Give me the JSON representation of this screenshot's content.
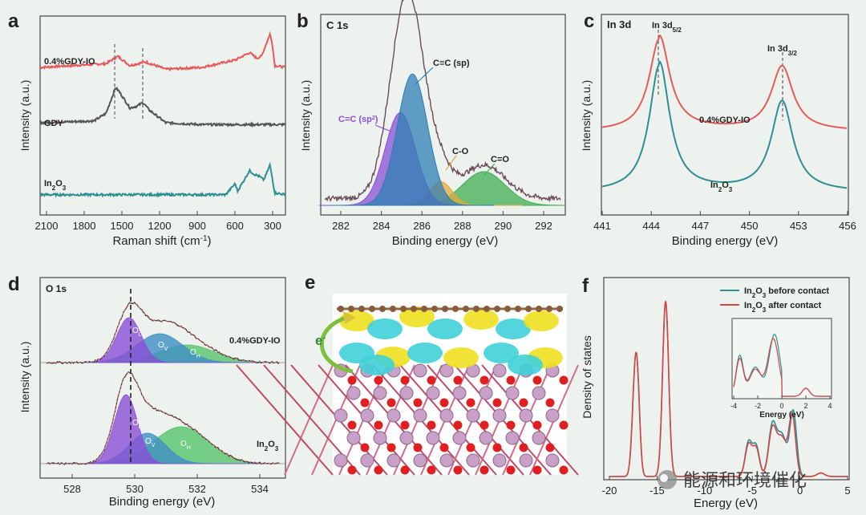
{
  "panels": {
    "a": {
      "letter": "a",
      "xlabel_main": "Raman shift (cm",
      "xlabel_sup": "-1",
      "xlabel_end": ")",
      "ylabel": "Intensity (a.u.)",
      "xticks": [
        "2100",
        "1800",
        "1500",
        "1200",
        "900",
        "600",
        "300"
      ],
      "series": [
        "0.4%GDY-IO",
        "GDY",
        "In2O3"
      ],
      "colors": {
        "gdyio": "#e55a5a",
        "gdy": "#555555",
        "in2o3": "#2b8f94"
      }
    },
    "b": {
      "letter": "b",
      "title": "C 1s",
      "xlabel": "Binding energy (eV)",
      "ylabel": "Intensity (a.u.)",
      "xticks": [
        "282",
        "284",
        "286",
        "288",
        "290",
        "292"
      ],
      "peaks": {
        "sp2": "C=C (sp",
        "sp2_sup": "2",
        "sp2_end": ")",
        "sp": "C≡C (sp)",
        "co": "C-O",
        "c_o": "C=O"
      },
      "colors": {
        "sp2": "#8a4fd6",
        "sp": "#2f7fb5",
        "co": "#e3a93a",
        "c_o": "#3fae50"
      }
    },
    "c": {
      "letter": "c",
      "title": "In 3d",
      "xlabel": "Binding energy (eV)",
      "ylabel": "Intensity (a.u.)",
      "xticks": [
        "441",
        "444",
        "447",
        "450",
        "453",
        "456"
      ],
      "peak1": "In 3d",
      "peak1_sub": "5/2",
      "peak2": "In 3d",
      "peak2_sub": "3/2",
      "label_top": "0.4%GDY-IO",
      "label_bot": "In2O3"
    },
    "d": {
      "letter": "d",
      "title": "O 1s",
      "xlabel": "Binding energy (eV)",
      "ylabel": "Intensity (a.u.)",
      "xticks": [
        "528",
        "530",
        "532",
        "534"
      ],
      "label_top": "0.4%GDY-IO",
      "label_bot": "In2O3",
      "ol": "O",
      "ol_sub": "L",
      "ov": "O",
      "ov_sub": "V",
      "oh": "O",
      "oh_sub": "H"
    },
    "e": {
      "letter": "e",
      "arrow_label": "e",
      "arrow_sup": "-"
    },
    "f": {
      "letter": "f",
      "xlabel": "Energy (eV)",
      "ylabel": "Density of states",
      "xticks": [
        "-20",
        "-15",
        "-10",
        "-5",
        "0",
        "5"
      ],
      "legend": [
        "In2O3 before contact",
        "In2O3 after contact"
      ],
      "inset_xlabel": "Energy (eV)",
      "inset_xticks": [
        "-4",
        "-2",
        "0",
        "2",
        "4"
      ],
      "colors": {
        "before": "#2b8f94",
        "after": "#d64545"
      }
    }
  },
  "watermark": "能源和环境催化",
  "chart_data": [
    {
      "type": "line",
      "panel": "a",
      "title": "",
      "xlabel": "Raman shift (cm-1)",
      "ylabel": "Intensity (a.u.)",
      "xlim": [
        2250,
        200
      ],
      "series": [
        {
          "name": "0.4%GDY-IO",
          "x": [
            2250,
            1700,
            1600,
            1500,
            1370,
            1200,
            900,
            620,
            500,
            440,
            400,
            330,
            310,
            290,
            200
          ],
          "y": [
            0.8,
            0.82,
            0.86,
            0.81,
            0.83,
            0.79,
            0.8,
            0.84,
            0.88,
            0.85,
            0.86,
            0.98,
            0.93,
            0.81,
            0.8
          ]
        },
        {
          "name": "GDY",
          "x": [
            2250,
            1800,
            1700,
            1620,
            1590,
            1500,
            1440,
            1390,
            1340,
            1200,
            900,
            600,
            300,
            200
          ],
          "y": [
            0.5,
            0.51,
            0.55,
            0.69,
            0.67,
            0.58,
            0.59,
            0.61,
            0.57,
            0.5,
            0.49,
            0.49,
            0.49,
            0.49
          ]
        },
        {
          "name": "In2O3",
          "x": [
            2250,
            1200,
            700,
            620,
            600,
            500,
            460,
            420,
            380,
            330,
            310,
            290,
            200
          ],
          "y": [
            0.11,
            0.11,
            0.11,
            0.17,
            0.13,
            0.24,
            0.22,
            0.21,
            0.19,
            0.27,
            0.2,
            0.12,
            0.11
          ]
        }
      ]
    },
    {
      "type": "area",
      "panel": "b",
      "title": "C 1s",
      "xlabel": "Binding energy (eV)",
      "ylabel": "Intensity (a.u.)",
      "xlim": [
        281,
        293
      ],
      "series": [
        {
          "name": "C=C (sp2)",
          "center": 284.9,
          "height": 0.55
        },
        {
          "name": "C≡C (sp)",
          "center": 285.5,
          "height": 0.78
        },
        {
          "name": "C-O",
          "center": 286.9,
          "height": 0.14
        },
        {
          "name": "C=O",
          "center": 289.0,
          "height": 0.2
        }
      ]
    },
    {
      "type": "line",
      "panel": "c",
      "title": "In 3d",
      "xlabel": "Binding energy (eV)",
      "ylabel": "Intensity (a.u.)",
      "xlim": [
        441,
        456
      ],
      "series": [
        {
          "name": "0.4%GDY-IO",
          "peaks": [
            444.5,
            452.0
          ]
        },
        {
          "name": "In2O3",
          "peaks": [
            444.5,
            452.0
          ]
        }
      ]
    },
    {
      "type": "area",
      "panel": "d",
      "title": "O 1s",
      "xlabel": "Binding energy (eV)",
      "ylabel": "Intensity (a.u.)",
      "xlim": [
        527,
        535
      ],
      "series": [
        {
          "name": "0.4%GDY-IO OL",
          "center": 529.9
        },
        {
          "name": "0.4%GDY-IO OV",
          "center": 530.9
        },
        {
          "name": "0.4%GDY-IO OH",
          "center": 531.8
        },
        {
          "name": "In2O3 OL",
          "center": 529.8
        },
        {
          "name": "In2O3 OV",
          "center": 530.5
        },
        {
          "name": "In2O3 OH",
          "center": 531.6
        }
      ]
    },
    {
      "type": "line",
      "panel": "f",
      "title": "",
      "xlabel": "Energy (eV)",
      "ylabel": "Density of states",
      "xlim": [
        -20,
        5
      ],
      "series": [
        {
          "name": "In2O3 before contact",
          "peaks": [
            -17.3,
            -14.1,
            -5.2,
            -2.8,
            -0.5
          ]
        },
        {
          "name": "In2O3 after contact",
          "peaks": [
            -17.3,
            -14.1,
            -5.2,
            -2.8,
            -0.6
          ]
        }
      ]
    }
  ]
}
